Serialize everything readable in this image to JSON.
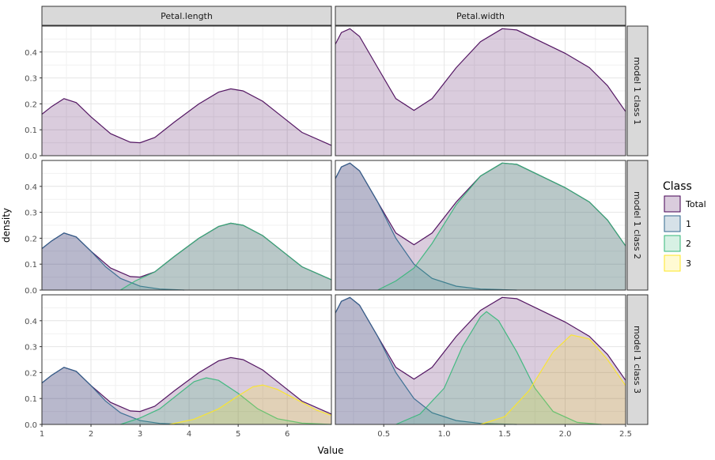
{
  "chart_data": {
    "type": "area",
    "xlabel": "Value",
    "ylabel": "density",
    "grid": true,
    "legend": {
      "title": "Class",
      "position": "right",
      "entries": [
        {
          "label": "Total",
          "fill": "#440154",
          "line": "#440154"
        },
        {
          "label": "1",
          "fill": "#31688e",
          "line": "#31688e"
        },
        {
          "label": "2",
          "fill": "#35b779",
          "line": "#35b779"
        },
        {
          "label": "3",
          "fill": "#fde725",
          "line": "#fde725"
        }
      ]
    },
    "columns": [
      {
        "strip": "Petal.length",
        "xlim": [
          1,
          6.9
        ],
        "ticks": [
          1,
          2,
          3,
          4,
          5,
          6
        ],
        "tick_labels": [
          "1",
          "2",
          "3",
          "4",
          "5",
          "6"
        ]
      },
      {
        "strip": "Petal.width",
        "xlim": [
          0.1,
          2.5
        ],
        "ticks": [
          0.5,
          1.0,
          1.5,
          2.0,
          2.5
        ],
        "tick_labels": [
          "0.5",
          "1.0",
          "1.5",
          "2.0",
          "2.5"
        ]
      }
    ],
    "rows": [
      {
        "strip": "model 1 class 1"
      },
      {
        "strip": "model 1 class 2"
      },
      {
        "strip": "model 1 class 3"
      }
    ],
    "ylim": [
      0,
      0.5
    ],
    "yticks": [
      0,
      0.1,
      0.2,
      0.3,
      0.4
    ],
    "ytick_labels": [
      "0.0",
      "0.1",
      "0.2",
      "0.3",
      "0.4"
    ],
    "series_curves": {
      "Petal.length": {
        "total": [
          [
            1,
            0.16
          ],
          [
            1.2,
            0.19
          ],
          [
            1.45,
            0.22
          ],
          [
            1.7,
            0.205
          ],
          [
            2.0,
            0.15
          ],
          [
            2.4,
            0.085
          ],
          [
            2.8,
            0.052
          ],
          [
            3.0,
            0.05
          ],
          [
            3.3,
            0.07
          ],
          [
            3.7,
            0.13
          ],
          [
            4.2,
            0.2
          ],
          [
            4.6,
            0.245
          ],
          [
            4.85,
            0.258
          ],
          [
            5.1,
            0.25
          ],
          [
            5.5,
            0.21
          ],
          [
            5.9,
            0.15
          ],
          [
            6.3,
            0.09
          ],
          [
            6.9,
            0.04
          ]
        ],
        "class_models": {
          "model 1 class 2": {
            "1": [
              [
                1,
                0.16
              ],
              [
                1.2,
                0.19
              ],
              [
                1.45,
                0.22
              ],
              [
                1.7,
                0.205
              ],
              [
                2.0,
                0.15
              ],
              [
                2.3,
                0.09
              ],
              [
                2.6,
                0.045
              ],
              [
                3.0,
                0.015
              ],
              [
                3.4,
                0.004
              ],
              [
                3.9,
                0.0
              ]
            ],
            "2": [
              [
                2.6,
                0.0
              ],
              [
                2.9,
                0.035
              ],
              [
                3.3,
                0.07
              ],
              [
                3.7,
                0.13
              ],
              [
                4.2,
                0.2
              ],
              [
                4.6,
                0.245
              ],
              [
                4.85,
                0.258
              ],
              [
                5.1,
                0.25
              ],
              [
                5.5,
                0.21
              ],
              [
                5.9,
                0.15
              ],
              [
                6.3,
                0.09
              ],
              [
                6.9,
                0.04
              ]
            ]
          },
          "model 1 class 3": {
            "1": [
              [
                1,
                0.16
              ],
              [
                1.2,
                0.19
              ],
              [
                1.45,
                0.22
              ],
              [
                1.7,
                0.205
              ],
              [
                2.0,
                0.15
              ],
              [
                2.3,
                0.09
              ],
              [
                2.6,
                0.045
              ],
              [
                3.0,
                0.015
              ],
              [
                3.4,
                0.004
              ],
              [
                3.9,
                0.0
              ]
            ],
            "2": [
              [
                2.6,
                0.0
              ],
              [
                3.0,
                0.025
              ],
              [
                3.4,
                0.06
              ],
              [
                3.8,
                0.12
              ],
              [
                4.1,
                0.165
              ],
              [
                4.35,
                0.18
              ],
              [
                4.6,
                0.17
              ],
              [
                5.0,
                0.12
              ],
              [
                5.4,
                0.06
              ],
              [
                5.8,
                0.022
              ],
              [
                6.3,
                0.005
              ],
              [
                6.9,
                0.0
              ]
            ],
            "3": [
              [
                3.6,
                0.0
              ],
              [
                4.1,
                0.02
              ],
              [
                4.6,
                0.06
              ],
              [
                5.0,
                0.11
              ],
              [
                5.3,
                0.145
              ],
              [
                5.5,
                0.152
              ],
              [
                5.8,
                0.135
              ],
              [
                6.2,
                0.095
              ],
              [
                6.6,
                0.055
              ],
              [
                6.9,
                0.035
              ]
            ]
          }
        }
      },
      "Petal.width": {
        "total": [
          [
            0.1,
            0.43
          ],
          [
            0.15,
            0.475
          ],
          [
            0.22,
            0.49
          ],
          [
            0.3,
            0.46
          ],
          [
            0.45,
            0.34
          ],
          [
            0.6,
            0.22
          ],
          [
            0.75,
            0.175
          ],
          [
            0.9,
            0.22
          ],
          [
            1.1,
            0.34
          ],
          [
            1.3,
            0.44
          ],
          [
            1.48,
            0.49
          ],
          [
            1.6,
            0.485
          ],
          [
            1.8,
            0.44
          ],
          [
            2.0,
            0.395
          ],
          [
            2.2,
            0.34
          ],
          [
            2.35,
            0.27
          ],
          [
            2.5,
            0.17
          ]
        ],
        "class_models": {
          "model 1 class 2": {
            "1": [
              [
                0.1,
                0.43
              ],
              [
                0.15,
                0.475
              ],
              [
                0.22,
                0.49
              ],
              [
                0.3,
                0.46
              ],
              [
                0.45,
                0.34
              ],
              [
                0.6,
                0.2
              ],
              [
                0.75,
                0.1
              ],
              [
                0.9,
                0.045
              ],
              [
                1.1,
                0.015
              ],
              [
                1.3,
                0.004
              ],
              [
                1.6,
                0.0
              ]
            ],
            "2": [
              [
                0.45,
                0.0
              ],
              [
                0.6,
                0.035
              ],
              [
                0.75,
                0.085
              ],
              [
                0.9,
                0.18
              ],
              [
                1.1,
                0.33
              ],
              [
                1.3,
                0.44
              ],
              [
                1.48,
                0.49
              ],
              [
                1.6,
                0.485
              ],
              [
                1.8,
                0.44
              ],
              [
                2.0,
                0.395
              ],
              [
                2.2,
                0.34
              ],
              [
                2.35,
                0.27
              ],
              [
                2.5,
                0.17
              ]
            ]
          },
          "model 1 class 3": {
            "1": [
              [
                0.1,
                0.43
              ],
              [
                0.15,
                0.475
              ],
              [
                0.22,
                0.49
              ],
              [
                0.3,
                0.46
              ],
              [
                0.45,
                0.34
              ],
              [
                0.6,
                0.2
              ],
              [
                0.75,
                0.1
              ],
              [
                0.9,
                0.045
              ],
              [
                1.1,
                0.015
              ],
              [
                1.3,
                0.004
              ],
              [
                1.6,
                0.0
              ]
            ],
            "2": [
              [
                0.6,
                0.0
              ],
              [
                0.8,
                0.04
              ],
              [
                1.0,
                0.14
              ],
              [
                1.15,
                0.3
              ],
              [
                1.3,
                0.415
              ],
              [
                1.35,
                0.435
              ],
              [
                1.45,
                0.4
              ],
              [
                1.6,
                0.28
              ],
              [
                1.75,
                0.14
              ],
              [
                1.9,
                0.05
              ],
              [
                2.1,
                0.008
              ],
              [
                2.3,
                0.0
              ]
            ],
            "3": [
              [
                1.3,
                0.0
              ],
              [
                1.5,
                0.03
              ],
              [
                1.7,
                0.13
              ],
              [
                1.9,
                0.28
              ],
              [
                2.05,
                0.345
              ],
              [
                2.2,
                0.33
              ],
              [
                2.35,
                0.25
              ],
              [
                2.5,
                0.15
              ]
            ]
          }
        }
      }
    }
  }
}
